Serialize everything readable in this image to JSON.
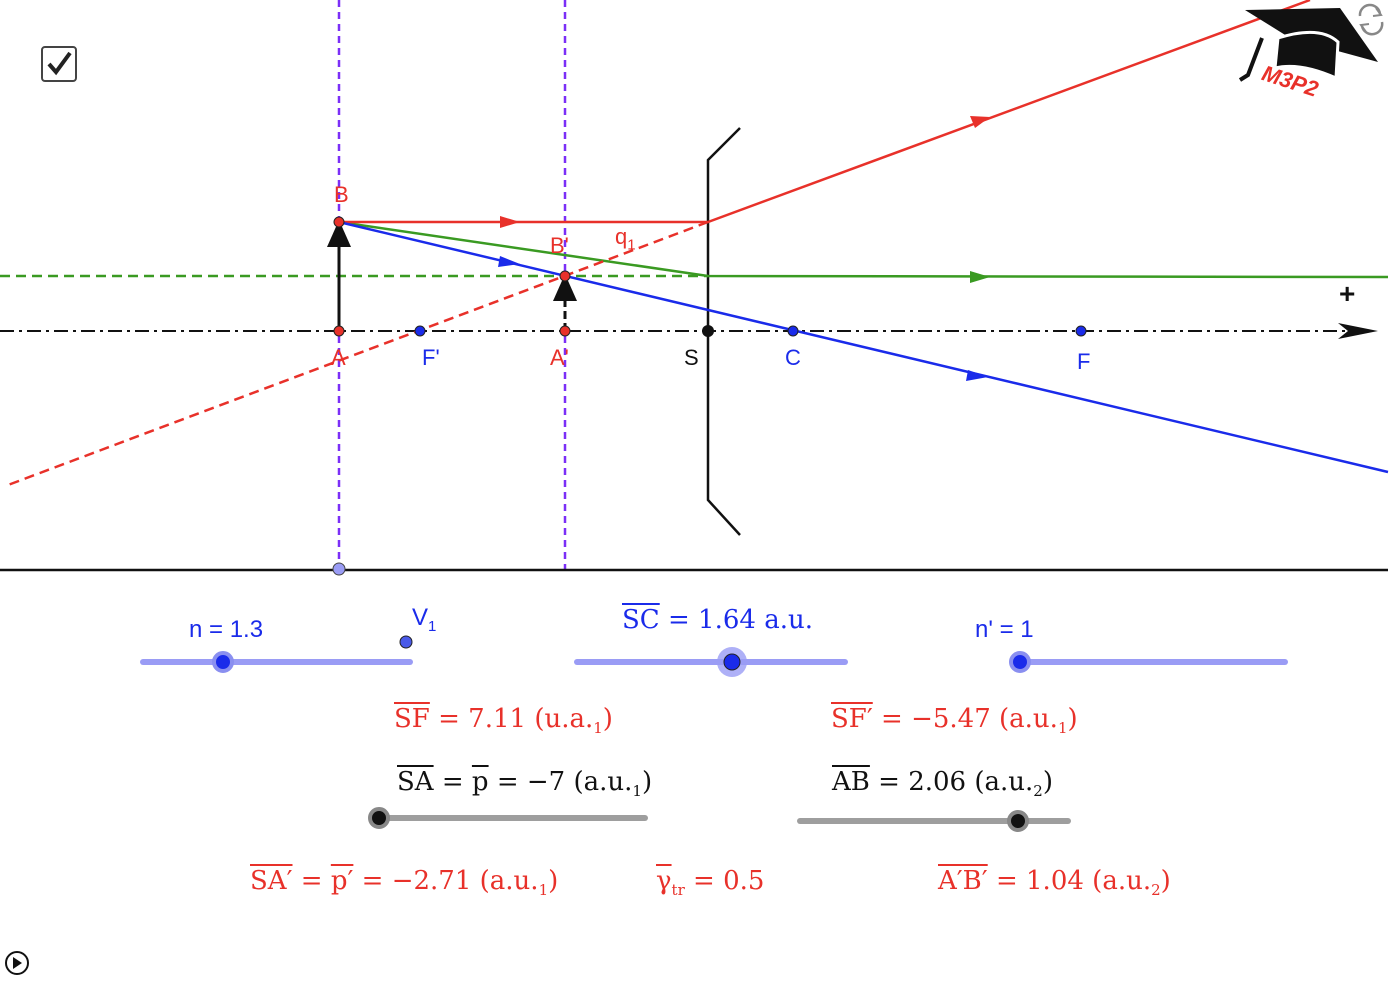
{
  "checkbox": {
    "checked": true
  },
  "points": {
    "B": "B",
    "B_prime": "B'",
    "q1": "q",
    "q1_sub": "1",
    "A": "A",
    "F_prime": "F'",
    "A_prime": "A'",
    "S": "S",
    "C": "C",
    "F": "F",
    "plus": "+",
    "V1": "V",
    "V1_sub": "1"
  },
  "logo": {
    "text": "M3P2"
  },
  "sliders": {
    "n": {
      "label": "n = 1.3",
      "value": 1.3
    },
    "SC": {
      "name": "SC",
      "rest": " = 1.64 a.u.",
      "value": 1.64
    },
    "n_prime": {
      "label": "n' = 1",
      "value": 1
    },
    "SA": {
      "name": "SA",
      "eq1": " = ",
      "p": "p",
      "eq2": " = −7 (a.u.",
      "sub": "1",
      "close": ")",
      "value": -7
    },
    "AB": {
      "name": "AB",
      "rest": " =  2.06 (a.u.",
      "sub": "2",
      "close": ")",
      "value": 2.06
    }
  },
  "results": {
    "SF": {
      "name": "SF",
      "rest": " = 7.11 (u.a.",
      "sub": "1",
      "close": ")"
    },
    "SF_prime": {
      "name": "SF′",
      "rest": " = −5.47 (a.u.",
      "sub": "1",
      "close": ")"
    },
    "SA_prime": {
      "name": "SA′",
      "eq1": " = ",
      "p": "p′",
      "eq2": " = −2.71 (a.u.",
      "sub": "1",
      "close": ")"
    },
    "gamma": {
      "name": "γ",
      "sub": "tr",
      "rest": " = 0.5"
    },
    "AB_prime": {
      "name": "A′B′",
      "rest": " = 1.04 (a.u.",
      "sub": "2",
      "close": ")"
    }
  },
  "colors": {
    "red": "#e8312a",
    "blue": "#1a2bea",
    "green": "#3a9a22",
    "purple": "#7b2ff7",
    "slider_blue": "#9a9cf5",
    "slider_gray": "#9e9e9e"
  }
}
